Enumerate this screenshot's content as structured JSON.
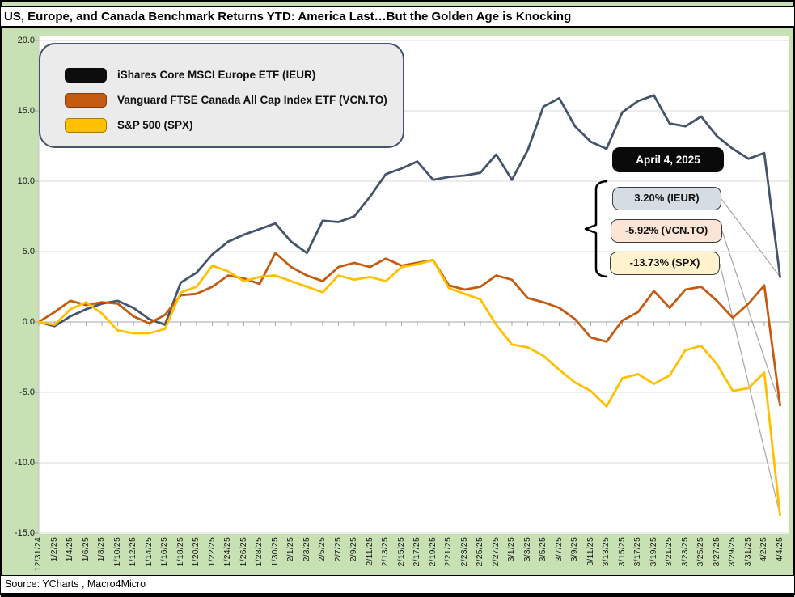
{
  "title": "US, Europe, and Canada Benchmark Returns YTD: America Last…But the Golden Age is Knocking",
  "source_line": "Source: YCharts , Macro4Micro",
  "legend": {
    "items": [
      {
        "label": "iShares Core MSCI Europe ETF (IEUR)",
        "color": "#0d0d0d"
      },
      {
        "label": "Vanguard FTSE Canada All Cap Index ETF (VCN.TO)",
        "color": "#c55a11"
      },
      {
        "label": "S&P 500 (SPX)",
        "color": "#ffc000"
      }
    ]
  },
  "annotations": {
    "date_label": "April 4, 2025",
    "callouts": [
      {
        "text": "3.20% (IEUR)",
        "fill": "#d6dce4"
      },
      {
        "text": "-5.92% (VCN.TO)",
        "fill": "#fce4d6"
      },
      {
        "text": "-13.73% (SPX)",
        "fill": "#fff2cc"
      }
    ]
  },
  "colors": {
    "canvas": "#c7e1b5",
    "plot_bg": "#ffffff",
    "gridline": "#d9d9d9",
    "axis": "#a6a6a6",
    "leader": "#a6a6a6"
  },
  "chart_data": {
    "type": "line",
    "title": "US, Europe, and Canada Benchmark Returns YTD",
    "ylim": [
      -15,
      20
    ],
    "ytick_step": 5,
    "ytick_format_decimals": 1,
    "grid": true,
    "legend_position": "top-left",
    "x_axis_position": "zero-line-ticks-labels-low",
    "categories": [
      "12/31/24",
      "1/2/25",
      "1/4/25",
      "1/6/25",
      "1/8/25",
      "1/10/25",
      "1/12/25",
      "1/14/25",
      "1/16/25",
      "1/18/25",
      "1/20/25",
      "1/22/25",
      "1/24/25",
      "1/26/25",
      "1/28/25",
      "1/30/25",
      "2/1/25",
      "2/3/25",
      "2/5/25",
      "2/7/25",
      "2/9/25",
      "2/11/25",
      "2/13/25",
      "2/15/25",
      "2/17/25",
      "2/19/25",
      "2/21/25",
      "2/23/25",
      "2/25/25",
      "2/27/25",
      "3/1/25",
      "3/3/25",
      "3/5/25",
      "3/7/25",
      "3/9/25",
      "3/11/25",
      "3/13/25",
      "3/15/25",
      "3/17/25",
      "3/19/25",
      "3/21/25",
      "3/23/25",
      "3/25/25",
      "3/27/25",
      "3/29/25",
      "3/31/25",
      "4/2/25",
      "4/4/25"
    ],
    "series": [
      {
        "name": "iShares Core MSCI Europe ETF (IEUR)",
        "ticker": "IEUR",
        "color": "#44546a",
        "values": [
          0,
          -0.3,
          0.4,
          0.9,
          1.3,
          1.5,
          1.0,
          0.2,
          -0.2,
          2.8,
          3.5,
          4.8,
          5.7,
          6.2,
          6.6,
          7.0,
          5.7,
          4.9,
          7.2,
          7.1,
          7.5,
          8.9,
          10.5,
          10.9,
          11.4,
          10.1,
          10.3,
          10.4,
          10.6,
          11.9,
          10.1,
          12.2,
          15.3,
          15.9,
          13.9,
          12.8,
          12.3,
          14.9,
          15.7,
          16.1,
          14.1,
          13.9,
          14.6,
          13.2,
          12.3,
          11.6,
          12.0,
          3.2
        ]
      },
      {
        "name": "Vanguard FTSE Canada All Cap Index ETF (VCN.TO)",
        "ticker": "VCN.TO",
        "color": "#c55a11",
        "values": [
          0,
          0.7,
          1.5,
          1.2,
          1.4,
          1.3,
          0.4,
          -0.1,
          0.5,
          1.9,
          2.0,
          2.5,
          3.3,
          3.1,
          2.7,
          4.9,
          3.9,
          3.3,
          2.9,
          3.9,
          4.2,
          3.9,
          4.5,
          4.0,
          4.2,
          4.4,
          2.6,
          2.3,
          2.5,
          3.3,
          3.0,
          1.7,
          1.4,
          1.0,
          0.2,
          -1.1,
          -1.4,
          0.1,
          0.7,
          2.2,
          1.0,
          2.3,
          2.5,
          1.5,
          0.3,
          1.3,
          2.6,
          -5.92
        ]
      },
      {
        "name": "S&P 500 (SPX)",
        "ticker": "SPX",
        "color": "#ffc000",
        "values": [
          0,
          -0.2,
          0.9,
          1.4,
          0.6,
          -0.6,
          -0.8,
          -0.8,
          -0.5,
          2.1,
          2.5,
          4.0,
          3.6,
          2.9,
          3.2,
          3.3,
          2.9,
          2.5,
          2.1,
          3.3,
          3.0,
          3.2,
          2.9,
          3.9,
          4.1,
          4.4,
          2.4,
          2.0,
          1.6,
          -0.2,
          -1.6,
          -1.8,
          -2.4,
          -3.4,
          -4.3,
          -4.9,
          -6.0,
          -4.0,
          -3.7,
          -4.4,
          -3.8,
          -2.0,
          -1.7,
          -3.0,
          -4.9,
          -4.7,
          -3.6,
          -13.73
        ]
      }
    ],
    "end_labels": {
      "IEUR": "3.20%",
      "VCN.TO": "-5.92%",
      "SPX": "-13.73%"
    }
  }
}
